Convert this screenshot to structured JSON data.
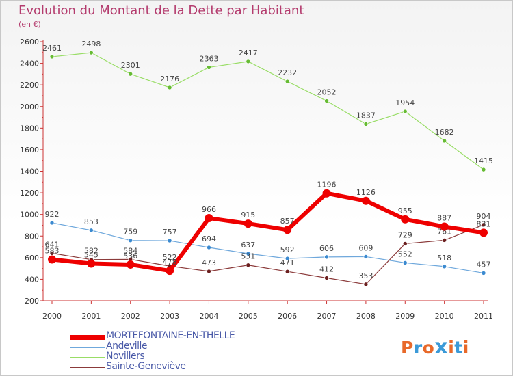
{
  "title": "Evolution du Montant de la Dette par Habitant",
  "subtitle": "(en €)",
  "logo": {
    "text": "Proxiti",
    "colors": [
      "#e8692a",
      "#3b9ad8",
      "#e8692a",
      "#3b9ad8",
      "#e8692a",
      "#3b9ad8",
      "#e8692a"
    ]
  },
  "chart_data": {
    "type": "line",
    "title": "Evolution du Montant de la Dette par Habitant",
    "subtitle": "(en €)",
    "x": [
      "2000",
      "2001",
      "2002",
      "2003",
      "2004",
      "2005",
      "2006",
      "2007",
      "2008",
      "2009",
      "2010",
      "2011"
    ],
    "ylim": [
      200,
      2600
    ],
    "yticks": [
      200,
      400,
      600,
      800,
      1000,
      1200,
      1400,
      1600,
      1800,
      2000,
      2200,
      2400,
      2600
    ],
    "grid": false,
    "legend_position": "bottom-left",
    "series": [
      {
        "name": "Novillers",
        "color": "#99dd66",
        "marker": "#66bb33",
        "width": 1.2,
        "values": [
          2461,
          2498,
          2301,
          2176,
          2363,
          2417,
          2232,
          2052,
          1837,
          1954,
          1682,
          1415
        ]
      },
      {
        "name": "Andeville",
        "color": "#6fa8dc",
        "marker": "#3b8ad0",
        "width": 1.2,
        "values": [
          922,
          853,
          759,
          757,
          694,
          637,
          592,
          606,
          609,
          552,
          518,
          457
        ]
      },
      {
        "name": "Sainte-Geneviève",
        "color": "#8b3a3a",
        "marker": "#6b1f1f",
        "width": 1.2,
        "values": [
          641,
          582,
          584,
          522,
          473,
          531,
          471,
          412,
          353,
          729,
          761,
          904
        ]
      },
      {
        "name": "MORTEFONTAINE-EN-THELLE",
        "color": "#ee0000",
        "marker": "#ee0000",
        "width": 6,
        "values": [
          583,
          545,
          536,
          478,
          966,
          915,
          857,
          1196,
          1126,
          955,
          887,
          831
        ]
      }
    ],
    "legend_order": [
      "MORTEFONTAINE-EN-THELLE",
      "Andeville",
      "Novillers",
      "Sainte-Geneviève"
    ]
  }
}
